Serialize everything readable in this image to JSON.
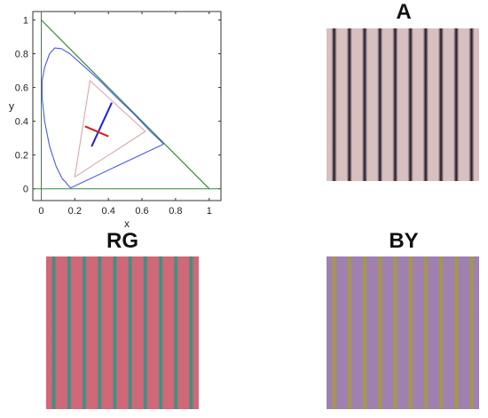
{
  "plot": {
    "xlabel": "x",
    "ylabel": "y",
    "xticks": [
      "0",
      "0.2",
      "0.4",
      "0.6",
      "0.8",
      "1"
    ],
    "yticks": [
      "0",
      "0.2",
      "0.4",
      "0.6",
      "0.8",
      "1"
    ],
    "xlim": [
      -0.05,
      1.07
    ],
    "ylim": [
      -0.07,
      1.05
    ],
    "colors": {
      "axes_frame": "#333333",
      "green_lines": "#2e8b3a",
      "spectral_locus": "#4a5ae6",
      "triangle": "#d9a8a8",
      "blue_line": "#1a22e0",
      "red_line": "#e01a1a"
    },
    "spectral_locus": [
      [
        0.175,
        0.005
      ],
      [
        0.17,
        0.01
      ],
      [
        0.16,
        0.02
      ],
      [
        0.145,
        0.04
      ],
      [
        0.125,
        0.06
      ],
      [
        0.09,
        0.13
      ],
      [
        0.05,
        0.25
      ],
      [
        0.02,
        0.4
      ],
      [
        0.005,
        0.54
      ],
      [
        0.005,
        0.64
      ],
      [
        0.02,
        0.72
      ],
      [
        0.05,
        0.8
      ],
      [
        0.08,
        0.834
      ],
      [
        0.12,
        0.83
      ],
      [
        0.17,
        0.8
      ],
      [
        0.25,
        0.73
      ],
      [
        0.35,
        0.64
      ],
      [
        0.45,
        0.54
      ],
      [
        0.55,
        0.445
      ],
      [
        0.65,
        0.34
      ],
      [
        0.73,
        0.265
      ]
    ],
    "purple_line": [
      [
        0.73,
        0.265
      ],
      [
        0.175,
        0.005
      ]
    ],
    "triangle": [
      [
        0.29,
        0.64
      ],
      [
        0.62,
        0.34
      ],
      [
        0.2,
        0.07
      ]
    ],
    "green_triangle_line": [
      [
        0.0,
        1.0
      ],
      [
        1.0,
        0.0
      ]
    ],
    "green_y_axis": [
      [
        0.0,
        -0.07
      ],
      [
        0.0,
        1.05
      ]
    ],
    "green_x_axis": [
      [
        -0.05,
        0.0
      ],
      [
        1.07,
        0.0
      ]
    ],
    "blue_segment": [
      [
        0.3,
        0.25
      ],
      [
        0.42,
        0.51
      ]
    ],
    "red_segment": [
      [
        0.26,
        0.37
      ],
      [
        0.4,
        0.31
      ]
    ]
  },
  "panels": {
    "a": {
      "title": "A",
      "stripe_count": 10,
      "color_light": "#d9c0c0",
      "color_dark": "#1a1424"
    },
    "rg": {
      "title": "RG",
      "stripe_count": 10,
      "color_light": "#d06878",
      "color_dark": "#1a9a86"
    },
    "by": {
      "title": "BY",
      "stripe_count": 10,
      "color_light": "#a080b0",
      "color_dark": "#a8a02a"
    }
  }
}
